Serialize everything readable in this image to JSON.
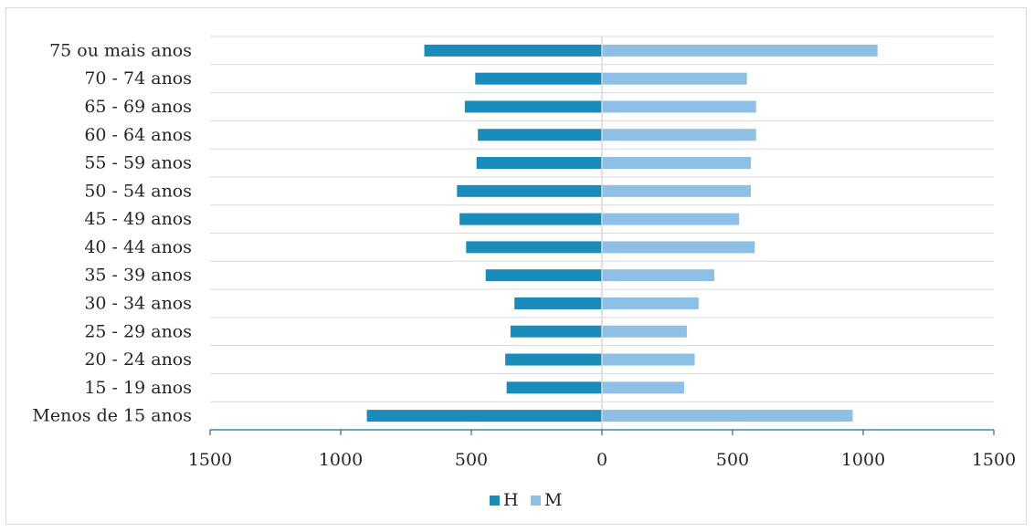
{
  "chart_data": {
    "type": "bar",
    "orientation": "horizontal",
    "categories": [
      "Menos de 15 anos",
      "15 - 19 anos",
      "20 - 24 anos",
      "25 - 29 anos",
      "30 - 34 anos",
      "35 - 39 anos",
      "40 - 44 anos",
      "45 - 49 anos",
      "50 - 54 anos",
      "55 - 59 anos",
      "60 - 64 anos",
      "65 - 69 anos",
      "70 - 74 anos",
      "75 ou mais anos"
    ],
    "series": [
      {
        "name": "H",
        "color": "#1a8cbc",
        "direction": "left",
        "values": [
          900,
          365,
          370,
          350,
          335,
          445,
          520,
          545,
          555,
          480,
          475,
          525,
          485,
          680
        ]
      },
      {
        "name": "M",
        "color": "#8ec0e6",
        "direction": "right",
        "values": [
          960,
          315,
          355,
          325,
          370,
          430,
          585,
          525,
          570,
          570,
          590,
          590,
          555,
          1055
        ]
      }
    ],
    "xlim": [
      -1500,
      1500
    ],
    "x_ticks": [
      {
        "value": -1500,
        "label": "1500"
      },
      {
        "value": -1000,
        "label": "1000"
      },
      {
        "value": -500,
        "label": "500"
      },
      {
        "value": 0,
        "label": "0"
      },
      {
        "value": 500,
        "label": "500"
      },
      {
        "value": 1000,
        "label": "1000"
      },
      {
        "value": 1500,
        "label": "1500"
      }
    ],
    "grid": "horizontal",
    "legend": {
      "position": "bottom",
      "entries": [
        "H",
        "M"
      ]
    },
    "title": "",
    "xlabel": "",
    "ylabel": ""
  }
}
